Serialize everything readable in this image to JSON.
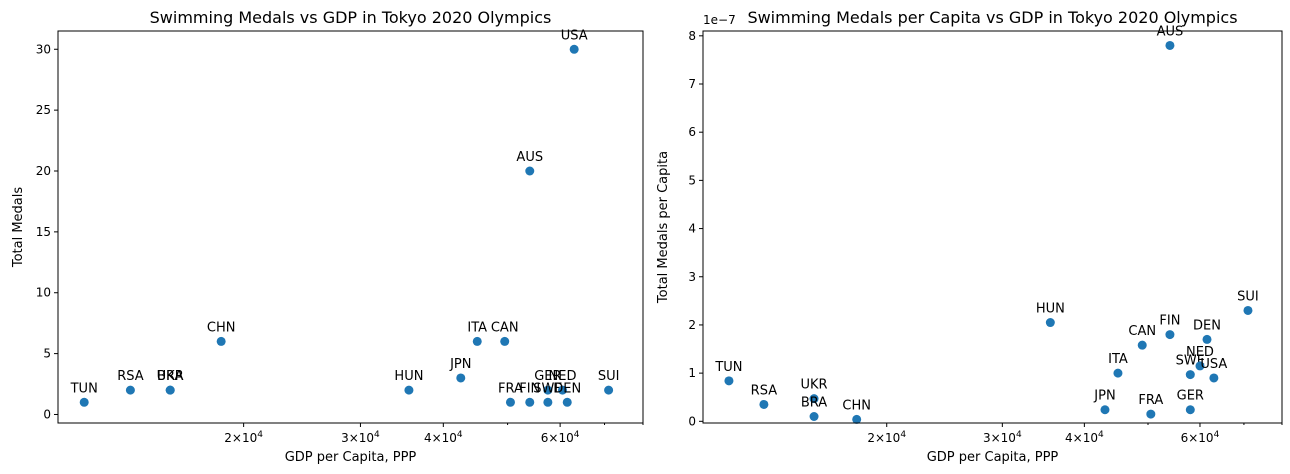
{
  "chart_data": [
    {
      "type": "scatter",
      "title": "Swimming Medals vs GDP in Tokyo 2020 Olympics",
      "xlabel": "GDP per Capita, PPP",
      "ylabel": "Total Medals",
      "xscale": "log",
      "xlim": [
        10500,
        80000
      ],
      "ylim": [
        -0.7,
        31.5
      ],
      "xticks": [
        {
          "value": 20000,
          "base": "2×10",
          "exp": "4"
        },
        {
          "value": 30000,
          "base": "3×10",
          "exp": "4"
        },
        {
          "value": 40000,
          "base": "4×10",
          "exp": "4"
        },
        {
          "value": 60000,
          "base": "6×10",
          "exp": "4"
        }
      ],
      "yticks": [
        0,
        5,
        10,
        15,
        20,
        25,
        30
      ],
      "color": "#1f77b4",
      "points": [
        {
          "label": "TUN",
          "x": 11500,
          "y": 1
        },
        {
          "label": "RSA",
          "x": 13500,
          "y": 2
        },
        {
          "label": "UKR",
          "x": 15500,
          "y": 2
        },
        {
          "label": "BRA",
          "x": 15500,
          "y": 2
        },
        {
          "label": "CHN",
          "x": 18500,
          "y": 6
        },
        {
          "label": "HUN",
          "x": 35500,
          "y": 2
        },
        {
          "label": "JPN",
          "x": 42500,
          "y": 3
        },
        {
          "label": "ITA",
          "x": 45000,
          "y": 6
        },
        {
          "label": "CAN",
          "x": 49500,
          "y": 6
        },
        {
          "label": "FRA",
          "x": 50500,
          "y": 1
        },
        {
          "label": "AUS",
          "x": 54000,
          "y": 20
        },
        {
          "label": "FIN",
          "x": 54000,
          "y": 1
        },
        {
          "label": "GER",
          "x": 57500,
          "y": 2
        },
        {
          "label": "SWE",
          "x": 57500,
          "y": 1
        },
        {
          "label": "NED",
          "x": 60500,
          "y": 2
        },
        {
          "label": "DEN",
          "x": 61500,
          "y": 1
        },
        {
          "label": "USA",
          "x": 63000,
          "y": 30
        },
        {
          "label": "SUI",
          "x": 71000,
          "y": 2
        }
      ]
    },
    {
      "type": "scatter",
      "title": "Swimming Medals per Capita vs GDP in Tokyo 2020 Olympics",
      "xlabel": "GDP per Capita, PPP",
      "ylabel": "Total Medals per Capita",
      "xscale": "log",
      "xlim": [
        10500,
        80000
      ],
      "ylim": [
        -0.035,
        8.1
      ],
      "offset_text": "1e−7",
      "xticks": [
        {
          "value": 20000,
          "base": "2×10",
          "exp": "4"
        },
        {
          "value": 30000,
          "base": "3×10",
          "exp": "4"
        },
        {
          "value": 40000,
          "base": "4×10",
          "exp": "4"
        },
        {
          "value": 60000,
          "base": "6×10",
          "exp": "4"
        }
      ],
      "yticks": [
        0,
        1,
        2,
        3,
        4,
        5,
        6,
        7,
        8
      ],
      "color": "#1f77b4",
      "points": [
        {
          "label": "TUN",
          "x": 11500,
          "y": 0.84
        },
        {
          "label": "RSA",
          "x": 13000,
          "y": 0.35
        },
        {
          "label": "UKR",
          "x": 15500,
          "y": 0.47
        },
        {
          "label": "BRA",
          "x": 15500,
          "y": 0.1
        },
        {
          "label": "CHN",
          "x": 18000,
          "y": 0.04
        },
        {
          "label": "HUN",
          "x": 35500,
          "y": 2.05
        },
        {
          "label": "JPN",
          "x": 43000,
          "y": 0.24
        },
        {
          "label": "ITA",
          "x": 45000,
          "y": 1.0
        },
        {
          "label": "CAN",
          "x": 49000,
          "y": 1.58
        },
        {
          "label": "FRA",
          "x": 50500,
          "y": 0.15
        },
        {
          "label": "FIN",
          "x": 54000,
          "y": 1.8
        },
        {
          "label": "AUS",
          "x": 54000,
          "y": 7.8
        },
        {
          "label": "SWE",
          "x": 58000,
          "y": 0.97
        },
        {
          "label": "GER",
          "x": 58000,
          "y": 0.24
        },
        {
          "label": "NED",
          "x": 60000,
          "y": 1.15
        },
        {
          "label": "DEN",
          "x": 61500,
          "y": 1.7
        },
        {
          "label": "USA",
          "x": 63000,
          "y": 0.9
        },
        {
          "label": "SUI",
          "x": 71000,
          "y": 2.3
        }
      ]
    }
  ]
}
